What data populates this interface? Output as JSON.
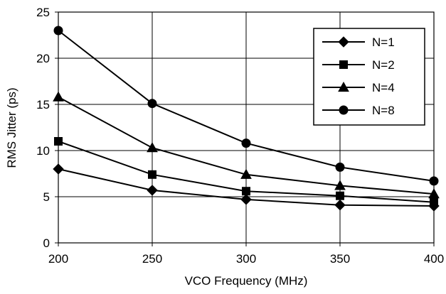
{
  "chart_data": {
    "type": "line",
    "title": "",
    "xlabel": "VCO Frequency (MHz)",
    "ylabel": "RMS Jitter (ps)",
    "x": [
      200,
      250,
      300,
      350,
      400
    ],
    "xlim": [
      200,
      400
    ],
    "ylim": [
      0,
      25
    ],
    "x_ticks": [
      200,
      250,
      300,
      350,
      400
    ],
    "y_ticks": [
      0,
      5,
      10,
      15,
      20,
      25
    ],
    "grid": true,
    "legend_position": "top-right",
    "series": [
      {
        "name": "N=1",
        "marker": "diamond",
        "values": [
          8.0,
          5.7,
          4.7,
          4.1,
          4.0
        ]
      },
      {
        "name": "N=2",
        "marker": "square",
        "values": [
          11.0,
          7.4,
          5.6,
          5.1,
          4.4
        ]
      },
      {
        "name": "N=4",
        "marker": "triangle",
        "values": [
          15.8,
          10.3,
          7.4,
          6.2,
          5.3
        ]
      },
      {
        "name": "N=8",
        "marker": "circle",
        "values": [
          23.0,
          15.1,
          10.8,
          8.2,
          6.7
        ]
      }
    ],
    "colors": {
      "line": "#000000",
      "grid": "#000000",
      "background": "#ffffff"
    }
  }
}
